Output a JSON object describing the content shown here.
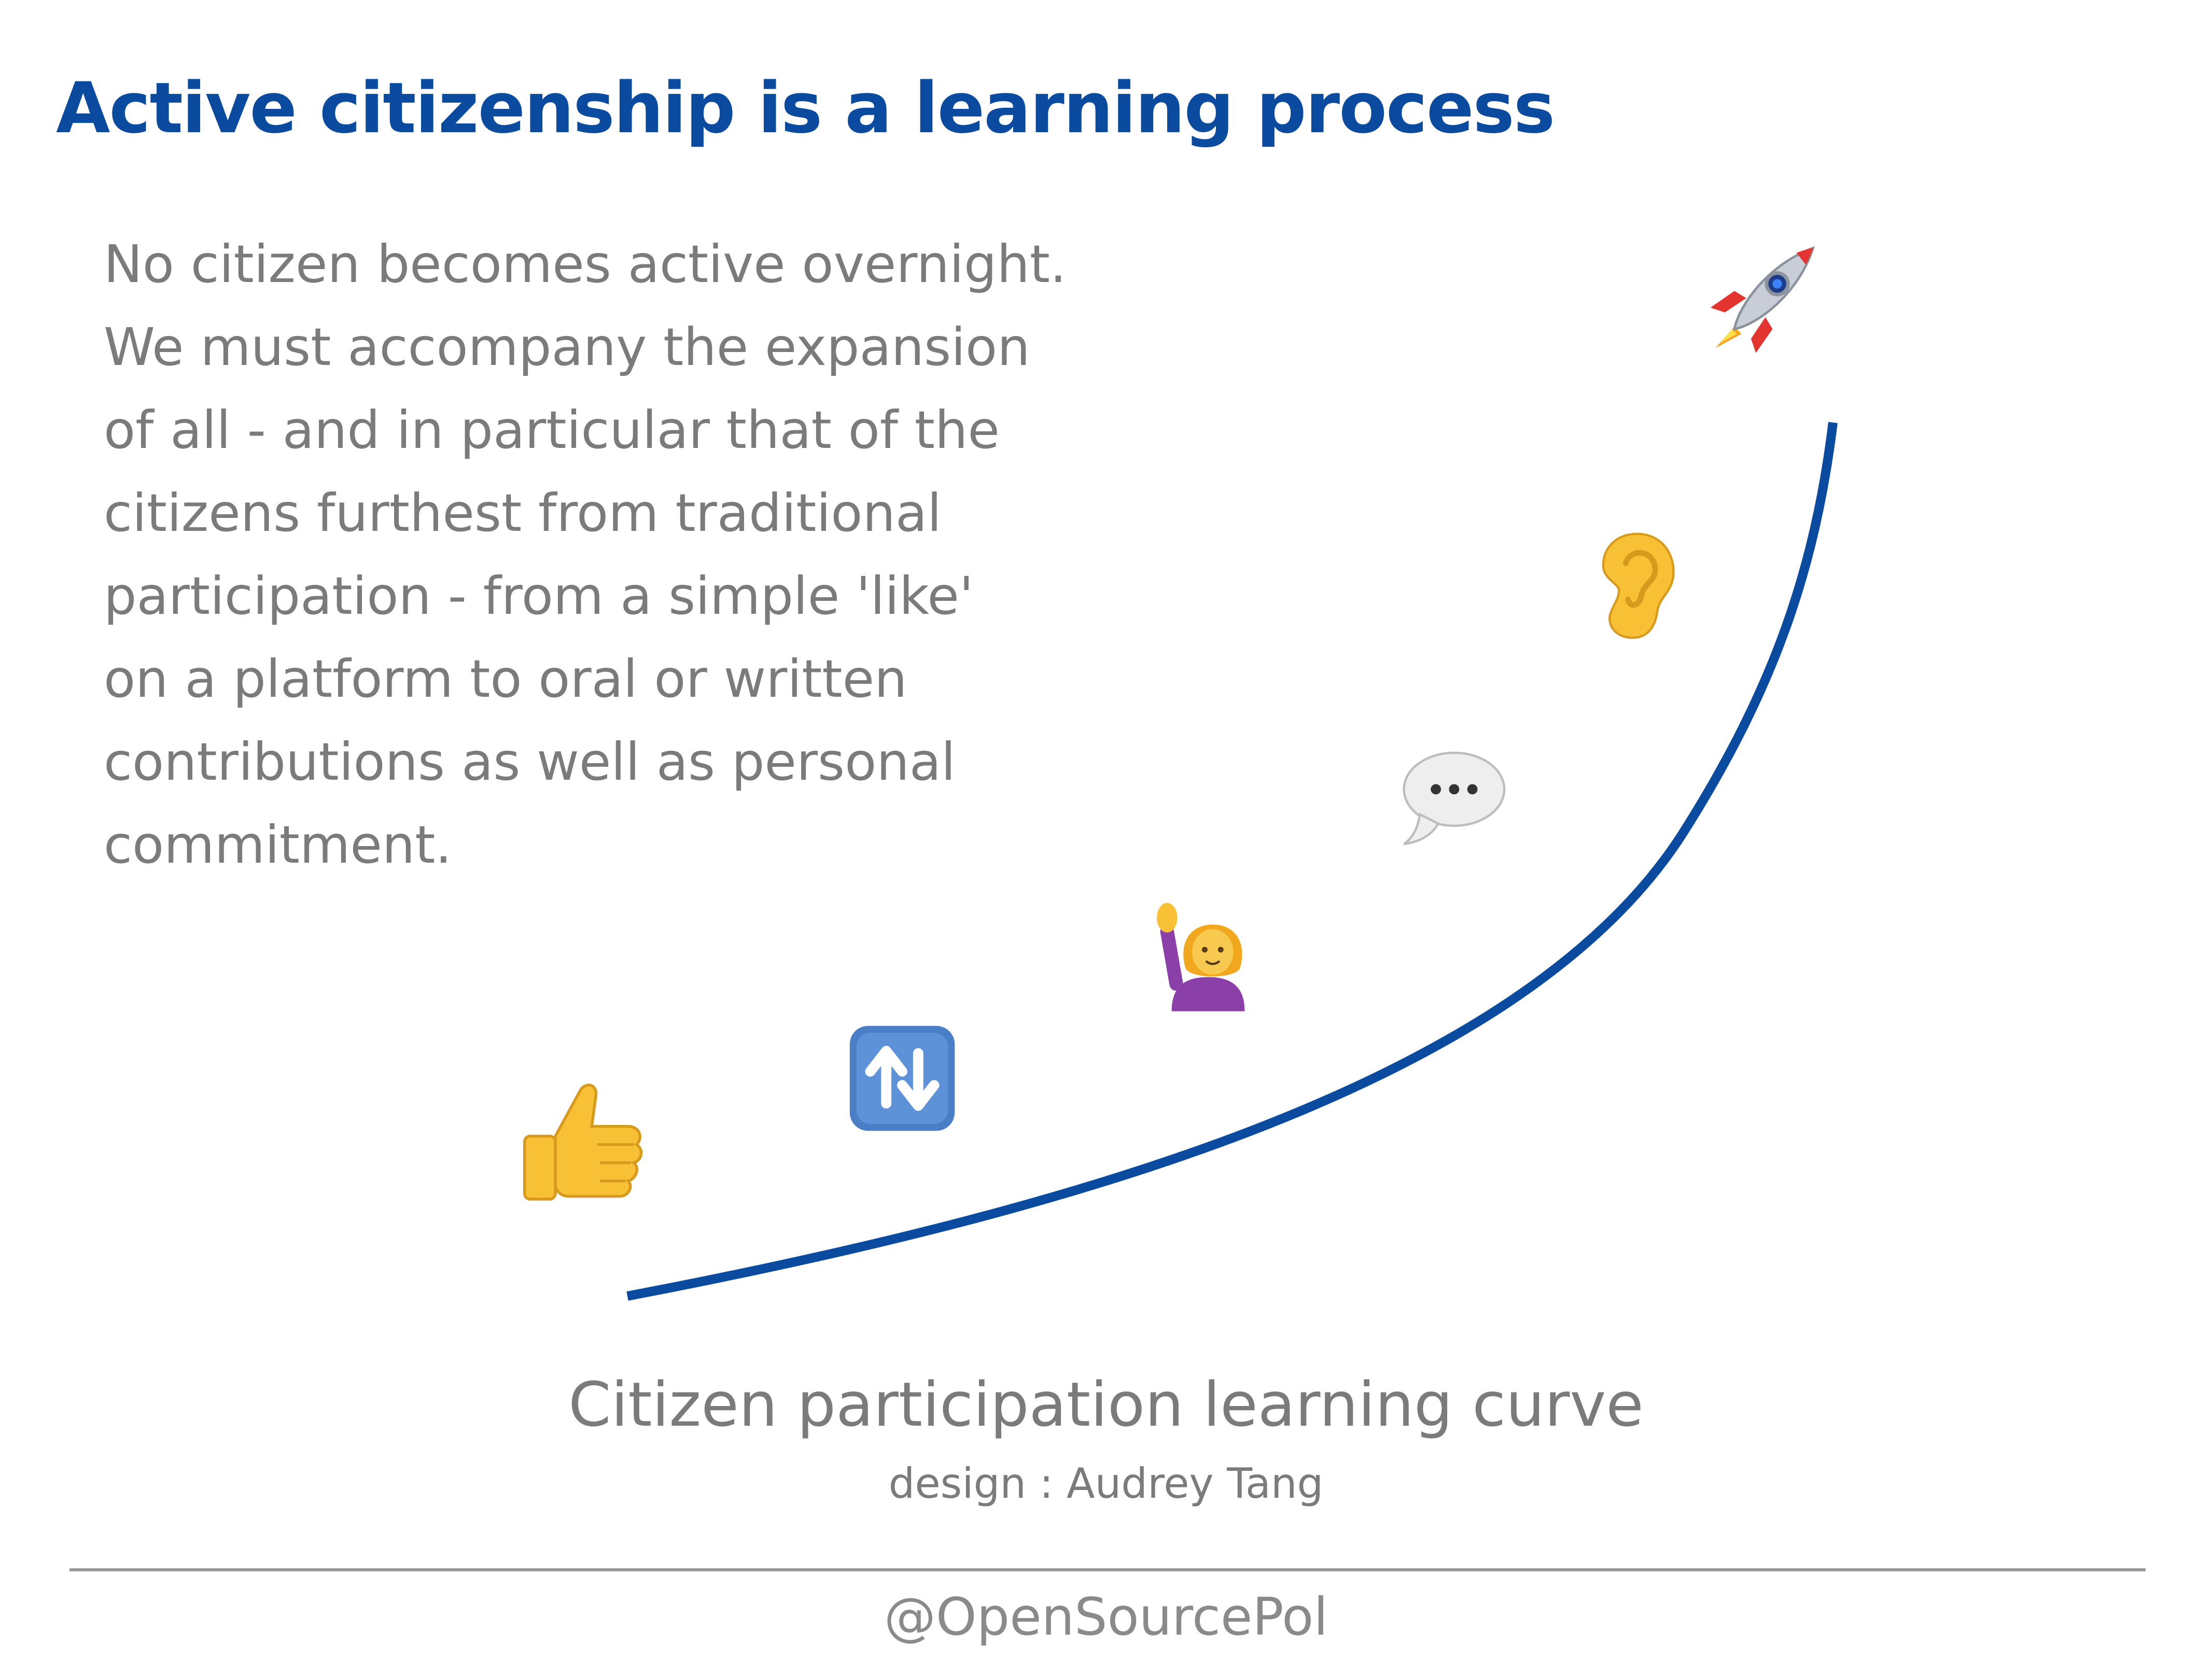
{
  "slide": {
    "title": "Active citizenship is a learning process",
    "body_lines": [
      "No citizen becomes active overnight.",
      "We must accompany the expansion",
      "of all - and in particular that of the",
      "citizens furthest from traditional",
      "participation - from a simple 'like'",
      "on a platform to oral or written",
      "contributions as well as personal",
      "commitment."
    ],
    "caption": "Citizen participation learning curve",
    "credit": "design : Audrey Tang",
    "footer": "@OpenSourcePol"
  },
  "diagram": {
    "curve_color": "#0a4a9f",
    "stages": [
      {
        "icon": "thumbs-up-icon"
      },
      {
        "icon": "share-arrows-icon"
      },
      {
        "icon": "raised-hand-icon"
      },
      {
        "icon": "speech-bubble-icon"
      },
      {
        "icon": "ear-icon"
      },
      {
        "icon": "rocket-icon"
      }
    ]
  }
}
